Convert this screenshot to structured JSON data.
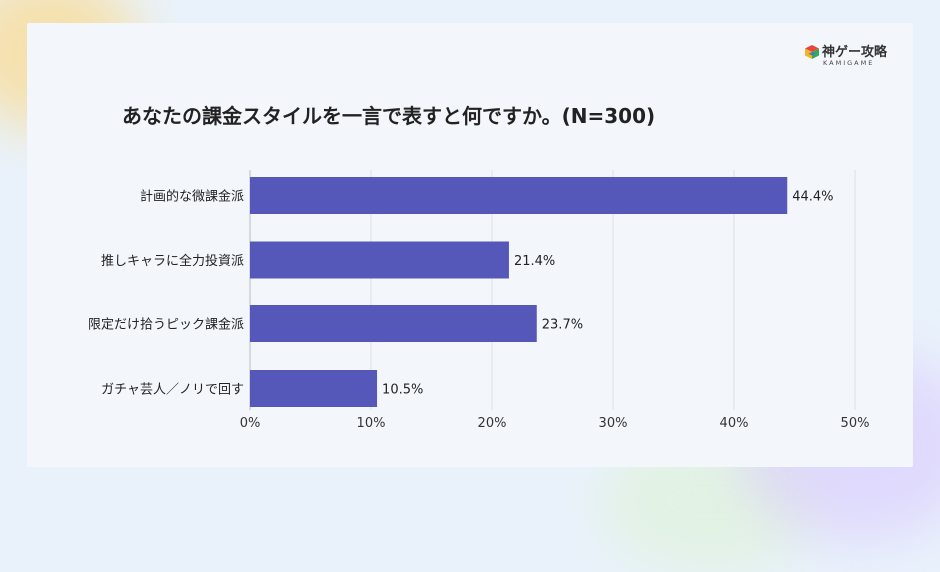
{
  "brand": {
    "name": "神ゲー攻略",
    "sub": "KAMIGAME",
    "colors": [
      "#e8453c",
      "#f6b51e",
      "#3aa757",
      "#2e7dd1"
    ]
  },
  "chart_data": {
    "type": "bar",
    "orientation": "horizontal",
    "title": "あなたの課金スタイルを一言で表すと何ですか。(N=300)",
    "categories": [
      "計画的な微課金派",
      "推しキャラに全力投資派",
      "限定だけ拾うピック課金派",
      "ガチャ芸人／ノリで回す"
    ],
    "values": [
      44.4,
      21.4,
      23.7,
      10.5
    ],
    "value_labels": [
      "44.4%",
      "21.4%",
      "23.7%",
      "10.5%"
    ],
    "xlim": [
      0,
      50
    ],
    "ticks": [
      0,
      10,
      20,
      30,
      40,
      50
    ],
    "tick_labels": [
      "0%",
      "10%",
      "20%",
      "30%",
      "40%",
      "50%"
    ],
    "grid": "vertical",
    "bar_color": "#5558b8",
    "xlabel": "",
    "ylabel": ""
  }
}
